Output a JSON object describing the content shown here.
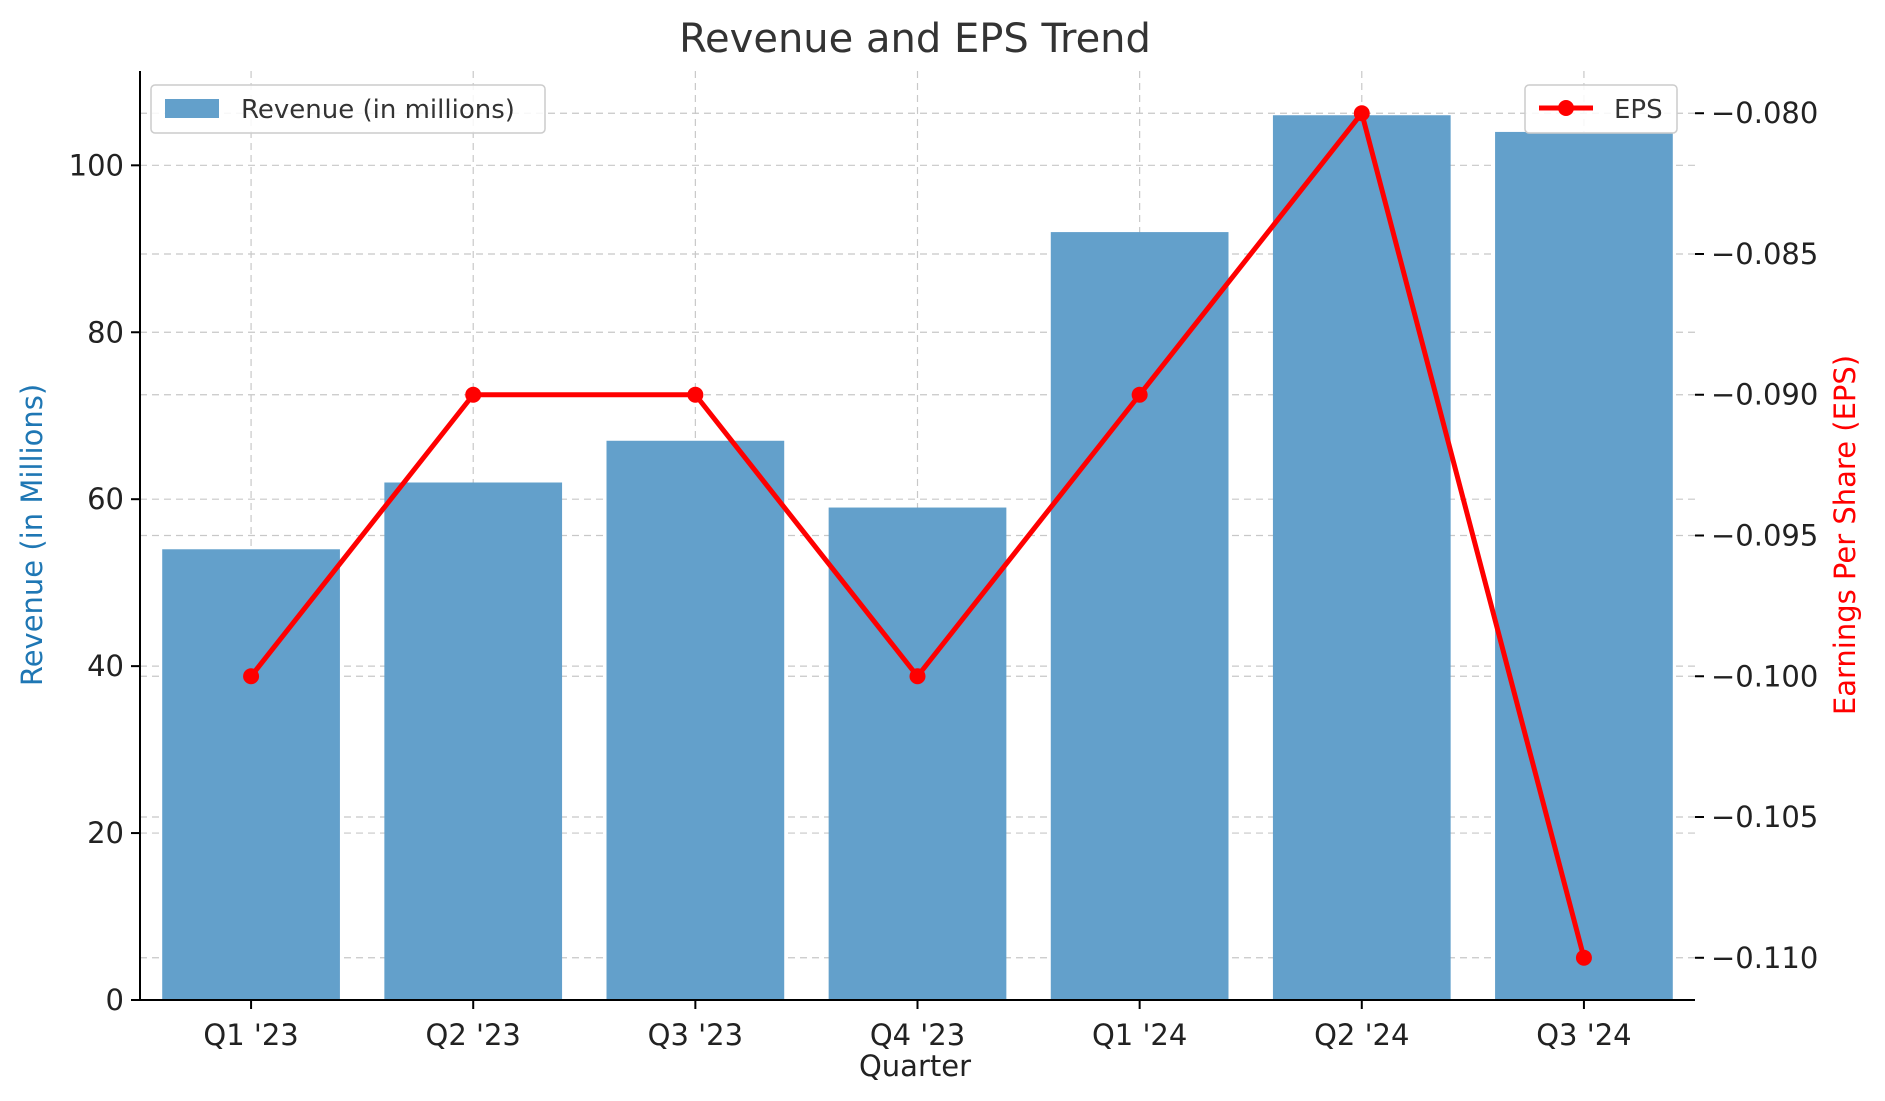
{
  "chart_data": {
    "type": "bar+line",
    "title": "Revenue and EPS Trend",
    "xlabel": "Quarter",
    "ylabel_left": "Revenue (in Millions)",
    "ylabel_right": "Earnings Per Share (EPS)",
    "categories": [
      "Q1 '23",
      "Q2 '23",
      "Q3 '23",
      "Q4 '23",
      "Q1 '24",
      "Q2 '24",
      "Q3 '24"
    ],
    "series": [
      {
        "name": "Revenue (in millions)",
        "type": "bar",
        "axis": "left",
        "color": "#63a0cb",
        "values": [
          54,
          62,
          67,
          59,
          92,
          106,
          104
        ]
      },
      {
        "name": "EPS",
        "type": "line",
        "axis": "right",
        "color": "#ff0000",
        "values": [
          -0.1,
          -0.09,
          -0.09,
          -0.1,
          -0.09,
          -0.08,
          -0.11
        ]
      }
    ],
    "ylim_left": [
      0,
      111.3
    ],
    "yticks_left": [
      0,
      20,
      40,
      60,
      80,
      100
    ],
    "ylim_right": [
      -0.1115,
      -0.0785
    ],
    "yticks_right": [
      "−0.080",
      "−0.085",
      "−0.090",
      "−0.095",
      "−0.100",
      "−0.105",
      "−0.110"
    ],
    "yticks_right_values": [
      -0.08,
      -0.085,
      -0.09,
      -0.095,
      -0.1,
      -0.105,
      -0.11
    ],
    "grid": true,
    "legend_left_position": "upper-left",
    "legend_right_position": "upper-right",
    "left_label_color": "#1f77b4",
    "right_label_color": "#ff0000"
  }
}
